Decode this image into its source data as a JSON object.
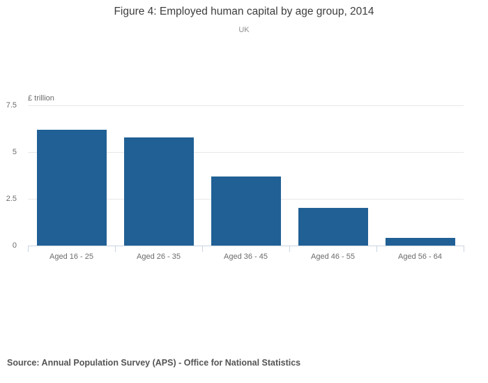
{
  "header": {
    "title": "Figure 4: Employed human capital by age group, 2014",
    "subtitle": "UK"
  },
  "footer": {
    "source": "Source: Annual Population Survey (APS) - Office for National Statistics"
  },
  "chart_data": {
    "type": "bar",
    "title": "Figure 4: Employed human capital by age group, 2014",
    "subtitle": "UK",
    "categories": [
      "Aged 16 - 25",
      "Aged 26 - 35",
      "Aged 36 - 45",
      "Aged 46 - 55",
      "Aged 56 - 64"
    ],
    "values": [
      6.2,
      5.8,
      3.7,
      2.0,
      0.4
    ],
    "xlabel": "",
    "ylabel": "£ trillion",
    "ylim": [
      0,
      7.5
    ],
    "ytick_values": [
      0,
      2.5,
      5,
      7.5
    ],
    "ytick_labels": [
      "0",
      "2.5",
      "5",
      "7.5"
    ],
    "grid": true,
    "legend": false,
    "bar_color": "#206095",
    "gridline_color": "#e8e8e8",
    "axis_color": "#c9d4e2",
    "source": "Source: Annual Population Survey (APS) - Office for National Statistics"
  }
}
